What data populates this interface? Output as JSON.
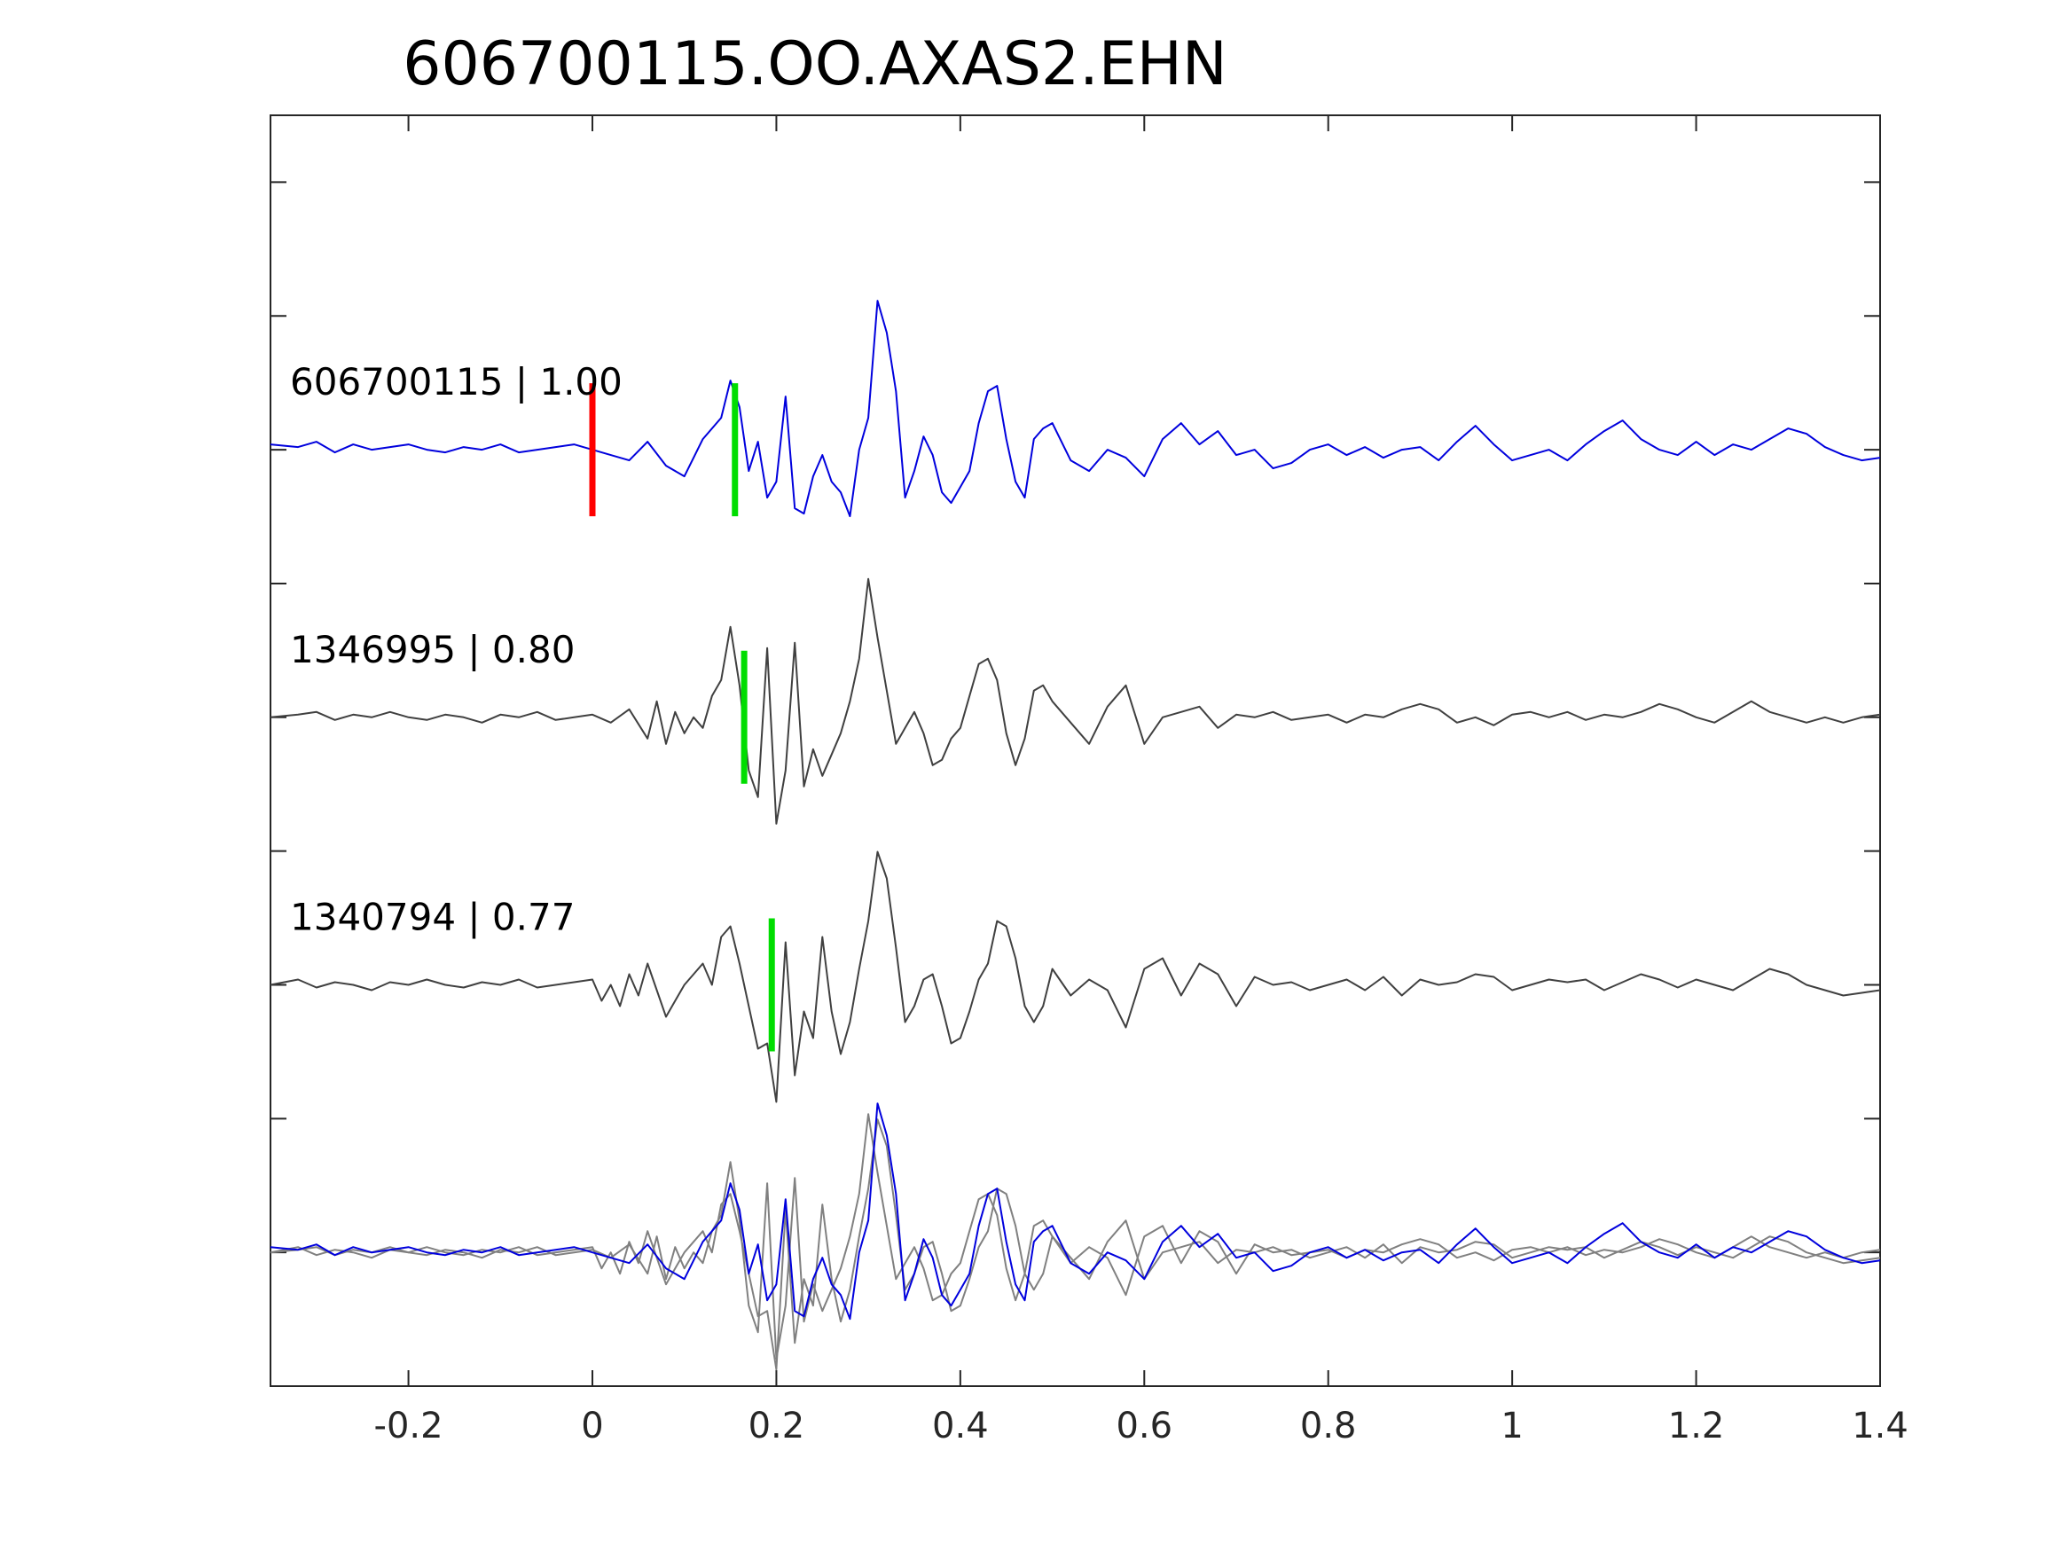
{
  "chart_data": {
    "type": "line",
    "title": "606700115.OO.AXAS2.EHN",
    "xlabel": "",
    "ylabel": "",
    "xlim": [
      -0.35,
      1.4
    ],
    "xticks": [
      -0.2,
      0,
      0.2,
      0.4,
      0.6,
      0.8,
      1,
      1.2,
      1.4
    ],
    "xtick_labels": [
      "-0.2",
      "0",
      "0.2",
      "0.4",
      "0.6",
      "0.8",
      "1",
      "1.2",
      "1.4"
    ],
    "ylim": [
      -0.5,
      4.25
    ],
    "yticks": [
      0,
      0.5,
      1,
      1.5,
      2,
      2.5,
      3,
      3.5,
      4
    ],
    "grid": false,
    "colors": {
      "main": "#0000dd",
      "match": "#404040",
      "overlay_gray": "#808080",
      "pick_red": "#ff0000",
      "pick_green": "#00dd00",
      "axis": "#262626"
    },
    "series": [
      {
        "label": "606700115 | 1.00",
        "baseline": 3,
        "color": "#0000dd",
        "x": [
          -0.35,
          -0.32,
          -0.3,
          -0.28,
          -0.26,
          -0.24,
          -0.22,
          -0.2,
          -0.18,
          -0.16,
          -0.14,
          -0.12,
          -0.1,
          -0.08,
          -0.06,
          -0.04,
          -0.02,
          0.0,
          0.02,
          0.04,
          0.06,
          0.08,
          0.1,
          0.12,
          0.14,
          0.15,
          0.16,
          0.17,
          0.18,
          0.19,
          0.2,
          0.21,
          0.22,
          0.23,
          0.24,
          0.25,
          0.26,
          0.27,
          0.28,
          0.29,
          0.3,
          0.31,
          0.32,
          0.33,
          0.34,
          0.35,
          0.36,
          0.37,
          0.38,
          0.39,
          0.4,
          0.41,
          0.42,
          0.43,
          0.44,
          0.45,
          0.46,
          0.47,
          0.48,
          0.49,
          0.5,
          0.52,
          0.54,
          0.56,
          0.58,
          0.6,
          0.62,
          0.64,
          0.66,
          0.68,
          0.7,
          0.72,
          0.74,
          0.76,
          0.78,
          0.8,
          0.82,
          0.84,
          0.86,
          0.88,
          0.9,
          0.92,
          0.94,
          0.96,
          0.98,
          1.0,
          1.02,
          1.04,
          1.06,
          1.08,
          1.1,
          1.12,
          1.14,
          1.16,
          1.18,
          1.2,
          1.22,
          1.24,
          1.26,
          1.28,
          1.3,
          1.32,
          1.34,
          1.36,
          1.38,
          1.4
        ],
        "y": [
          0.02,
          0.01,
          0.03,
          -0.01,
          0.02,
          0.0,
          0.01,
          0.02,
          0.0,
          -0.01,
          0.01,
          0.0,
          0.02,
          -0.01,
          0.0,
          0.01,
          0.02,
          0.0,
          -0.02,
          -0.04,
          0.03,
          -0.06,
          -0.1,
          0.04,
          0.12,
          0.26,
          0.16,
          -0.08,
          0.03,
          -0.18,
          -0.12,
          0.2,
          -0.22,
          -0.24,
          -0.1,
          -0.02,
          -0.12,
          -0.16,
          -0.25,
          0.0,
          0.12,
          0.56,
          0.44,
          0.22,
          -0.18,
          -0.08,
          0.05,
          -0.02,
          -0.16,
          -0.2,
          -0.14,
          -0.08,
          0.1,
          0.22,
          0.24,
          0.04,
          -0.12,
          -0.18,
          0.04,
          0.08,
          0.1,
          -0.04,
          -0.08,
          0.0,
          -0.03,
          -0.1,
          0.04,
          0.1,
          0.02,
          0.07,
          -0.02,
          0.0,
          -0.07,
          -0.05,
          0.0,
          0.02,
          -0.02,
          0.01,
          -0.03,
          0.0,
          0.01,
          -0.04,
          0.03,
          0.09,
          0.02,
          -0.04,
          -0.02,
          0.0,
          -0.04,
          0.02,
          0.07,
          0.11,
          0.04,
          0.0,
          -0.02,
          0.03,
          -0.02,
          0.02,
          0.0,
          0.04,
          0.08,
          0.06,
          0.01,
          -0.02,
          -0.04,
          -0.03
        ]
      },
      {
        "label": "1346995 | 0.80",
        "baseline": 2,
        "color": "#404040",
        "x": [
          -0.35,
          -0.32,
          -0.3,
          -0.28,
          -0.26,
          -0.24,
          -0.22,
          -0.2,
          -0.18,
          -0.16,
          -0.14,
          -0.12,
          -0.1,
          -0.08,
          -0.06,
          -0.04,
          -0.02,
          0.0,
          0.02,
          0.04,
          0.06,
          0.07,
          0.08,
          0.09,
          0.1,
          0.11,
          0.12,
          0.13,
          0.14,
          0.15,
          0.16,
          0.17,
          0.18,
          0.19,
          0.2,
          0.21,
          0.22,
          0.23,
          0.24,
          0.25,
          0.26,
          0.27,
          0.28,
          0.29,
          0.3,
          0.31,
          0.32,
          0.33,
          0.34,
          0.35,
          0.36,
          0.37,
          0.38,
          0.39,
          0.4,
          0.41,
          0.42,
          0.43,
          0.44,
          0.45,
          0.46,
          0.47,
          0.48,
          0.49,
          0.5,
          0.52,
          0.54,
          0.56,
          0.58,
          0.6,
          0.62,
          0.64,
          0.66,
          0.68,
          0.7,
          0.72,
          0.74,
          0.76,
          0.78,
          0.8,
          0.82,
          0.84,
          0.86,
          0.88,
          0.9,
          0.92,
          0.94,
          0.96,
          0.98,
          1.0,
          1.02,
          1.04,
          1.06,
          1.08,
          1.1,
          1.12,
          1.14,
          1.16,
          1.18,
          1.2,
          1.22,
          1.24,
          1.26,
          1.28,
          1.3,
          1.32,
          1.34,
          1.36,
          1.38,
          1.4
        ],
        "y": [
          0.0,
          0.01,
          0.02,
          -0.01,
          0.01,
          0.0,
          0.02,
          0.0,
          -0.01,
          0.01,
          0.0,
          -0.02,
          0.01,
          0.0,
          0.02,
          -0.01,
          0.0,
          0.01,
          -0.02,
          0.03,
          -0.08,
          0.06,
          -0.1,
          0.02,
          -0.06,
          0.0,
          -0.04,
          0.08,
          0.14,
          0.34,
          0.12,
          -0.2,
          -0.3,
          0.26,
          -0.4,
          -0.2,
          0.28,
          -0.26,
          -0.12,
          -0.22,
          -0.14,
          -0.06,
          0.06,
          0.22,
          0.52,
          0.3,
          0.1,
          -0.1,
          -0.04,
          0.02,
          -0.06,
          -0.18,
          -0.16,
          -0.08,
          -0.04,
          0.08,
          0.2,
          0.22,
          0.14,
          -0.06,
          -0.18,
          -0.08,
          0.1,
          0.12,
          0.06,
          -0.02,
          -0.1,
          0.04,
          0.12,
          -0.1,
          0.0,
          0.02,
          0.04,
          -0.04,
          0.01,
          0.0,
          0.02,
          -0.01,
          0.0,
          0.01,
          -0.02,
          0.01,
          0.0,
          0.03,
          0.05,
          0.03,
          -0.02,
          0.0,
          -0.03,
          0.01,
          0.02,
          0.0,
          0.02,
          -0.01,
          0.01,
          0.0,
          0.02,
          0.05,
          0.03,
          0.0,
          -0.02,
          0.02,
          0.06,
          0.02,
          0.0,
          -0.02,
          0.0,
          -0.02,
          0.0,
          0.01
        ]
      },
      {
        "label": "1340794 | 0.77",
        "baseline": 1,
        "color": "#404040",
        "x": [
          -0.35,
          -0.32,
          -0.3,
          -0.28,
          -0.26,
          -0.24,
          -0.22,
          -0.2,
          -0.18,
          -0.16,
          -0.14,
          -0.12,
          -0.1,
          -0.08,
          -0.06,
          -0.04,
          -0.02,
          0.0,
          0.01,
          0.02,
          0.03,
          0.04,
          0.05,
          0.06,
          0.07,
          0.08,
          0.09,
          0.1,
          0.11,
          0.12,
          0.13,
          0.14,
          0.15,
          0.16,
          0.17,
          0.18,
          0.19,
          0.2,
          0.21,
          0.22,
          0.23,
          0.24,
          0.25,
          0.26,
          0.27,
          0.28,
          0.29,
          0.3,
          0.31,
          0.32,
          0.33,
          0.34,
          0.35,
          0.36,
          0.37,
          0.38,
          0.39,
          0.4,
          0.41,
          0.42,
          0.43,
          0.44,
          0.45,
          0.46,
          0.47,
          0.48,
          0.49,
          0.5,
          0.52,
          0.54,
          0.56,
          0.58,
          0.6,
          0.62,
          0.64,
          0.66,
          0.68,
          0.7,
          0.72,
          0.74,
          0.76,
          0.78,
          0.8,
          0.82,
          0.84,
          0.86,
          0.88,
          0.9,
          0.92,
          0.94,
          0.96,
          0.98,
          1.0,
          1.02,
          1.04,
          1.06,
          1.08,
          1.1,
          1.12,
          1.14,
          1.16,
          1.18,
          1.2,
          1.22,
          1.24,
          1.26,
          1.28,
          1.3,
          1.32,
          1.34,
          1.36,
          1.38,
          1.4
        ],
        "y": [
          0.0,
          0.02,
          -0.01,
          0.01,
          0.0,
          -0.02,
          0.01,
          0.0,
          0.02,
          0.0,
          -0.01,
          0.01,
          0.0,
          0.02,
          -0.01,
          0.0,
          0.01,
          0.02,
          -0.06,
          0.0,
          -0.08,
          0.04,
          -0.04,
          0.08,
          -0.02,
          -0.12,
          -0.06,
          0.0,
          0.04,
          0.08,
          0.0,
          0.18,
          0.22,
          0.08,
          -0.08,
          -0.24,
          -0.22,
          -0.44,
          0.16,
          -0.34,
          -0.1,
          -0.2,
          0.18,
          -0.1,
          -0.26,
          -0.14,
          0.06,
          0.24,
          0.5,
          0.4,
          0.14,
          -0.14,
          -0.08,
          0.02,
          0.04,
          -0.08,
          -0.22,
          -0.2,
          -0.1,
          0.02,
          0.08,
          0.24,
          0.22,
          0.1,
          -0.08,
          -0.14,
          -0.08,
          0.06,
          -0.04,
          0.02,
          -0.02,
          -0.16,
          0.06,
          0.1,
          -0.04,
          0.08,
          0.04,
          -0.08,
          0.03,
          0.0,
          0.01,
          -0.02,
          0.0,
          0.02,
          -0.02,
          0.03,
          -0.04,
          0.02,
          0.0,
          0.01,
          0.04,
          0.03,
          -0.02,
          0.0,
          0.02,
          0.01,
          0.02,
          -0.02,
          0.01,
          0.04,
          0.02,
          -0.01,
          0.02,
          0.0,
          -0.02,
          0.02,
          0.06,
          0.04,
          0.0,
          -0.02,
          -0.04,
          -0.03,
          -0.02
        ]
      }
    ],
    "overlay": {
      "baseline": 0,
      "series_labels": [
        "606700115 | 1.00",
        "1346995 | 0.80",
        "1340794 | 0.77"
      ]
    },
    "picks": [
      {
        "trace": 0,
        "x": 0.0,
        "color": "#ff0000"
      },
      {
        "trace": 0,
        "x": 0.155,
        "color": "#00dd00"
      },
      {
        "trace": 1,
        "x": 0.165,
        "color": "#00dd00"
      },
      {
        "trace": 2,
        "x": 0.195,
        "color": "#00dd00"
      }
    ]
  }
}
